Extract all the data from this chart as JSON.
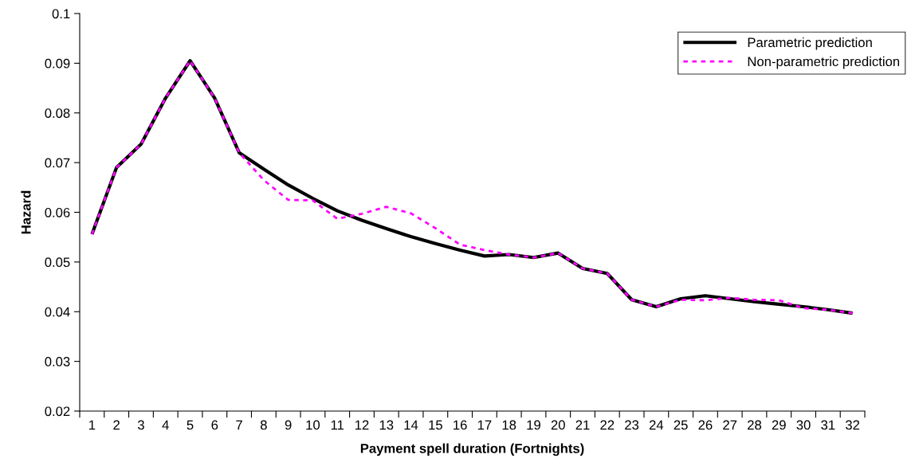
{
  "chart_data": {
    "type": "line",
    "xlabel": "Payment spell duration (Fortnights)",
    "ylabel": "Hazard",
    "categories": [
      "1",
      "2",
      "3",
      "4",
      "5",
      "6",
      "7",
      "8",
      "9",
      "10",
      "11",
      "12",
      "13",
      "14",
      "15",
      "16",
      "17",
      "18",
      "19",
      "20",
      "21",
      "22",
      "23",
      "24",
      "25",
      "26",
      "27",
      "28",
      "29",
      "30",
      "31",
      "32"
    ],
    "ylim": [
      0.02,
      0.1
    ],
    "yticks": [
      0.02,
      0.03,
      0.04,
      0.05,
      0.06,
      0.07,
      0.08,
      0.09,
      0.1
    ],
    "grid": false,
    "legend": "top right",
    "series": [
      {
        "name": "Parametric prediction",
        "color": "#000000",
        "line_style": "solid",
        "values": [
          0.0556,
          0.069,
          0.0737,
          0.083,
          0.0905,
          0.083,
          0.072,
          0.0687,
          0.0655,
          0.0628,
          0.0603,
          0.0584,
          0.0567,
          0.0551,
          0.0537,
          0.0524,
          0.0512,
          0.0515,
          0.0509,
          0.0518,
          0.0487,
          0.0477,
          0.0424,
          0.041,
          0.0426,
          0.0432,
          0.0426,
          0.042,
          0.0415,
          0.041,
          0.0404,
          0.0397
        ]
      },
      {
        "name": "Non-parametric prediction",
        "color": "#ff00ff",
        "line_style": "dotted",
        "values": [
          0.0556,
          0.069,
          0.0737,
          0.083,
          0.0905,
          0.083,
          0.072,
          0.0665,
          0.0625,
          0.0624,
          0.0587,
          0.0597,
          0.0611,
          0.0598,
          0.0568,
          0.0535,
          0.0524,
          0.0515,
          0.0509,
          0.0518,
          0.0487,
          0.0477,
          0.0424,
          0.041,
          0.0424,
          0.0423,
          0.0428,
          0.0424,
          0.0423,
          0.0407,
          0.0404,
          0.0397
        ]
      }
    ]
  }
}
